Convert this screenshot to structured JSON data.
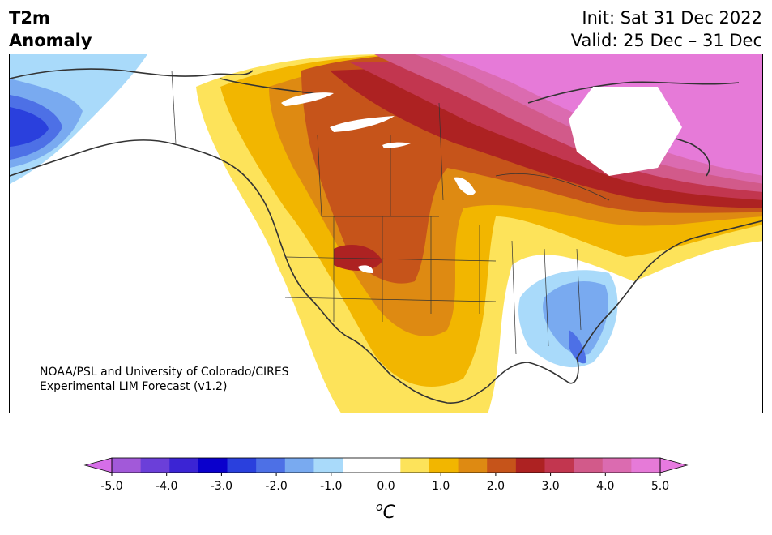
{
  "title": {
    "line1": "T2m",
    "line2": "Anomaly"
  },
  "header_right": {
    "init": "Init: Sat 31 Dec 2022",
    "valid": "Valid: 25 Dec – 31 Dec"
  },
  "credit": {
    "line1": "NOAA/PSL and University of Colorado/CIRES",
    "line2": "Experimental LIM Forecast (v1.2)"
  },
  "colorbar": {
    "unit_base": "C",
    "unit_super": "o",
    "ticks": [
      "-5.0",
      "-4.0",
      "-3.0",
      "-2.0",
      "-1.0",
      "0.0",
      "1.0",
      "2.0",
      "3.0",
      "4.0",
      "5.0"
    ],
    "colors": [
      "#a259d9",
      "#6b3fd9",
      "#3b24d4",
      "#0a00cc",
      "#2a40dd",
      "#4d70e6",
      "#79aaf0",
      "#a9dafa",
      "#ffffff",
      "#ffffff",
      "#fde35a",
      "#f2b600",
      "#de8a12",
      "#c6541a",
      "#ad2222",
      "#c2364f",
      "#d25a8a",
      "#db6bb0",
      "#e67ad8"
    ],
    "under_color": "#d66ee8",
    "over_color": "#e77ae0"
  },
  "map": {
    "variable": "2m temperature anomaly",
    "region": "North America"
  }
}
